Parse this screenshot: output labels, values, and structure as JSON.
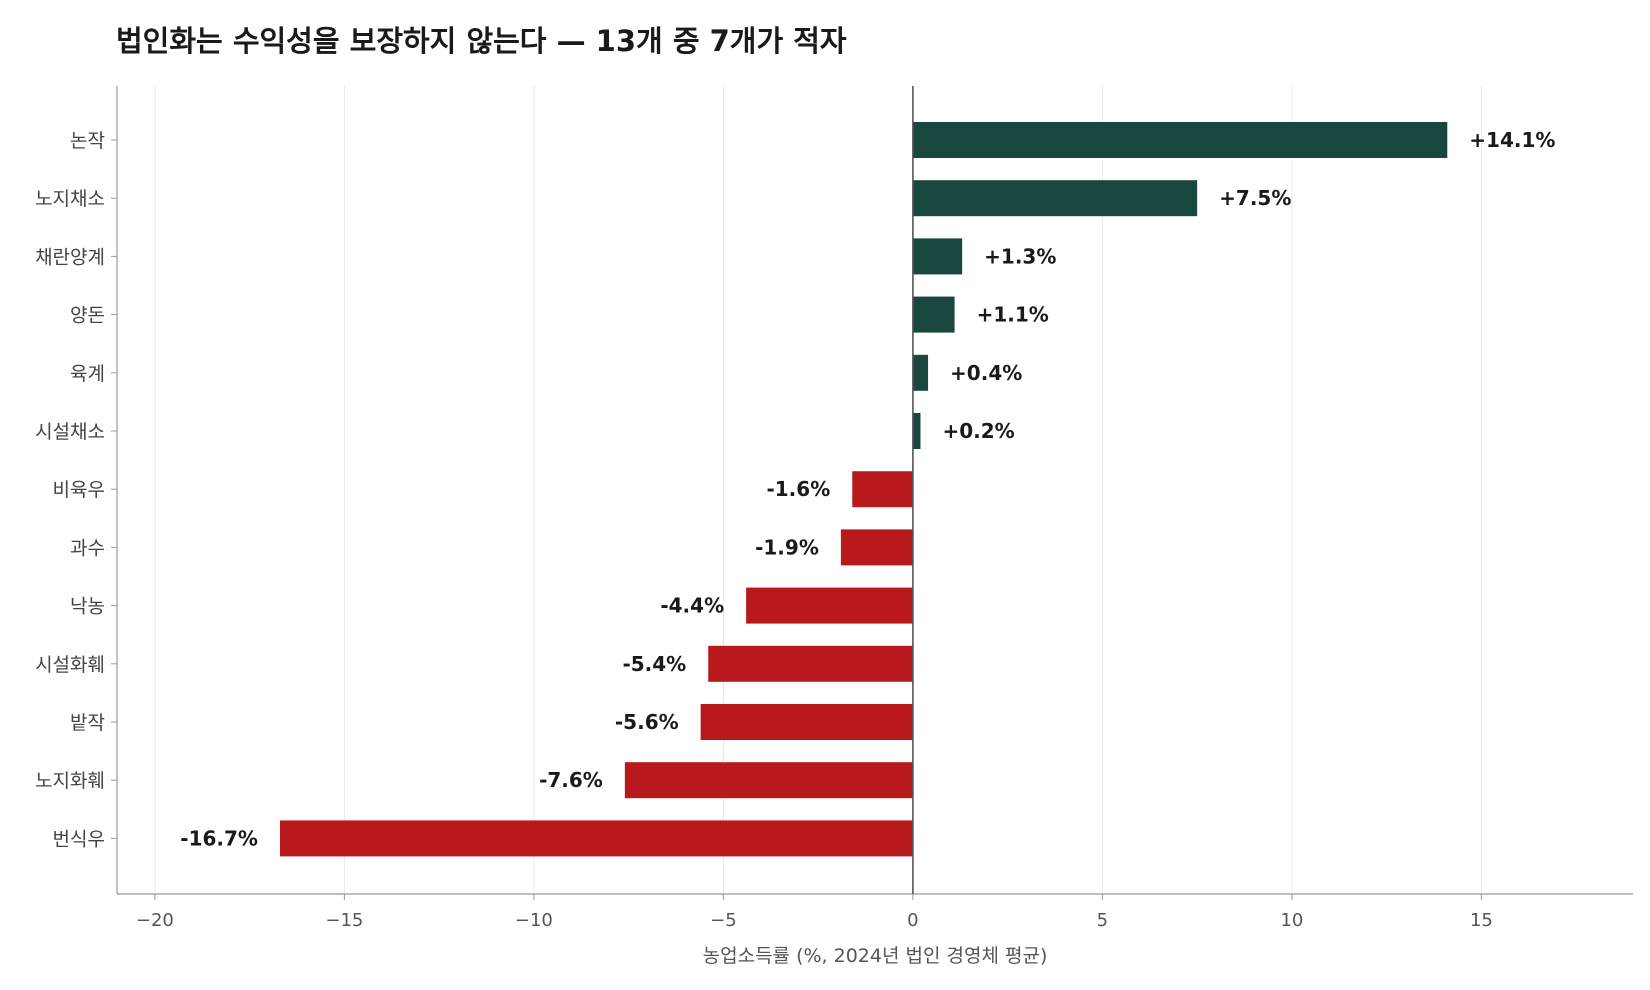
{
  "chart_data": {
    "type": "bar",
    "orientation": "horizontal",
    "title": "법인화는 수익성을 보장하지 않는다 — 13개 중 7개가 적자",
    "xlabel": "농업소득률 (%, 2024년 법인 경영체 평균)",
    "ylabel": "",
    "xlim": [
      -21,
      19
    ],
    "xticks": [
      -20,
      -15,
      -10,
      -5,
      0,
      5,
      10,
      15
    ],
    "grid": "vertical",
    "categories": [
      "논작",
      "노지채소",
      "채란양계",
      "양돈",
      "육계",
      "시설채소",
      "비육우",
      "과수",
      "낙농",
      "시설화훼",
      "밭작",
      "노지화훼",
      "번식우"
    ],
    "values": [
      14.1,
      7.5,
      1.3,
      1.1,
      0.4,
      0.2,
      -1.6,
      -1.9,
      -4.4,
      -5.4,
      -5.6,
      -7.6,
      -16.7
    ],
    "labels": [
      "+14.1%",
      "+7.5%",
      "+1.3%",
      "+1.1%",
      "+0.4%",
      "+0.2%",
      "-1.6%",
      "-1.9%",
      "-4.4%",
      "-5.4%",
      "-5.6%",
      "-7.6%",
      "-16.7%"
    ],
    "colors": {
      "positive": "#1a4640",
      "negative": "#b8191c",
      "grid": "#e8e8e8",
      "axis": "#999999",
      "zero_line": "#555555"
    }
  }
}
